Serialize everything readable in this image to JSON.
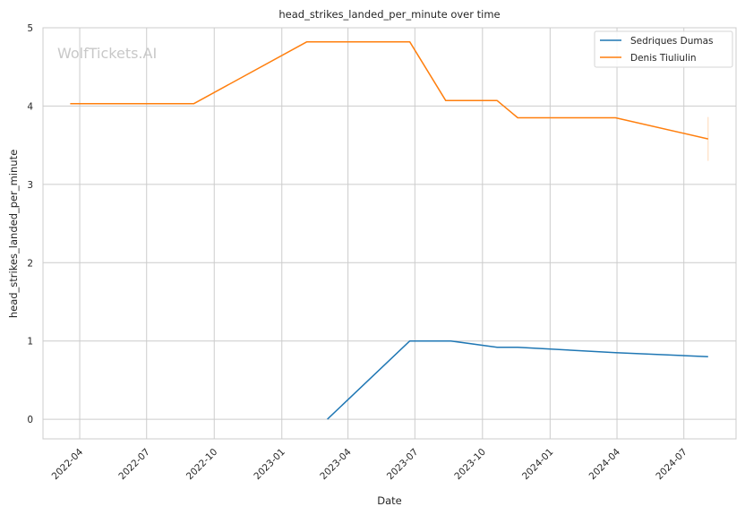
{
  "chart_data": {
    "type": "line",
    "title": "head_strikes_landed_per_minute over time",
    "xlabel": "Date",
    "ylabel": "head_strikes_landed_per_minute",
    "watermark": "WolfTickets.AI",
    "x_type": "date",
    "xlim": [
      "2022-02-10",
      "2024-09-10"
    ],
    "ylim": [
      -0.25,
      5.0
    ],
    "x_ticks": [
      {
        "date": "2022-04-01",
        "label": "2022-04"
      },
      {
        "date": "2022-07-01",
        "label": "2022-07"
      },
      {
        "date": "2022-10-01",
        "label": "2022-10"
      },
      {
        "date": "2023-01-01",
        "label": "2023-01"
      },
      {
        "date": "2023-04-01",
        "label": "2023-04"
      },
      {
        "date": "2023-07-01",
        "label": "2023-07"
      },
      {
        "date": "2023-10-01",
        "label": "2023-10"
      },
      {
        "date": "2024-01-01",
        "label": "2024-01"
      },
      {
        "date": "2024-04-01",
        "label": "2024-04"
      },
      {
        "date": "2024-07-01",
        "label": "2024-07"
      }
    ],
    "y_ticks": [
      0,
      1,
      2,
      3,
      4,
      5
    ],
    "grid": true,
    "legend_position": "top-right",
    "series": [
      {
        "name": "Sedriques Dumas",
        "color": "#1f77b4",
        "points": [
          {
            "x": "2023-03-04",
            "y": 0.0
          },
          {
            "x": "2023-06-24",
            "y": 1.0
          },
          {
            "x": "2023-08-19",
            "y": 1.0
          },
          {
            "x": "2023-10-21",
            "y": 0.92
          },
          {
            "x": "2023-11-18",
            "y": 0.92
          },
          {
            "x": "2024-03-30",
            "y": 0.85
          },
          {
            "x": "2024-08-03",
            "y": 0.8
          }
        ]
      },
      {
        "name": "Denis Tiuliulin",
        "color": "#ff7f0e",
        "points": [
          {
            "x": "2022-03-19",
            "y": 4.03
          },
          {
            "x": "2022-09-03",
            "y": 4.03
          },
          {
            "x": "2023-02-04",
            "y": 4.82
          },
          {
            "x": "2023-06-24",
            "y": 4.82
          },
          {
            "x": "2023-08-12",
            "y": 4.07
          },
          {
            "x": "2023-10-21",
            "y": 4.07
          },
          {
            "x": "2023-11-18",
            "y": 3.85
          },
          {
            "x": "2024-03-30",
            "y": 3.85
          },
          {
            "x": "2024-08-03",
            "y": 3.58
          }
        ],
        "error_bar": {
          "x": "2024-08-03",
          "low": 3.3,
          "high": 3.86
        }
      }
    ]
  }
}
